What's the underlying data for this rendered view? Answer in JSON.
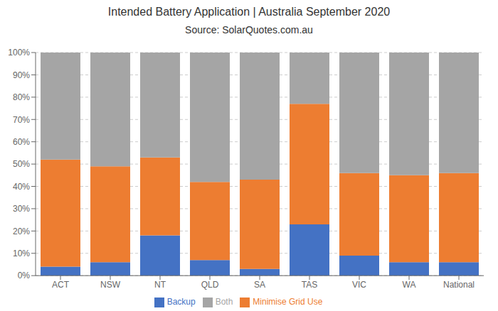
{
  "chart_data": {
    "type": "bar",
    "title": "Intended Battery Application | Australia September 2020",
    "subtitle": "Source: SolarQuotes.com.au",
    "categories": [
      "ACT",
      "NSW",
      "NT",
      "QLD",
      "SA",
      "TAS",
      "VIC",
      "WA",
      "National"
    ],
    "series": [
      {
        "name": "Backup",
        "color": "#4472c4",
        "values": [
          4,
          6,
          18,
          7,
          3,
          23,
          9,
          6,
          6
        ]
      },
      {
        "name": "Minimise Grid Use",
        "color": "#ed7d31",
        "values": [
          48,
          43,
          35,
          35,
          40,
          54,
          37,
          39,
          40
        ]
      },
      {
        "name": "Both",
        "color": "#a5a5a5",
        "values": [
          48,
          51,
          47,
          58,
          57,
          23,
          54,
          55,
          54
        ]
      }
    ],
    "ylim": [
      0,
      100
    ],
    "yticks": [
      {
        "value": 0,
        "label": "0%"
      },
      {
        "value": 10,
        "label": "10%"
      },
      {
        "value": 20,
        "label": "20%"
      },
      {
        "value": 30,
        "label": "30%"
      },
      {
        "value": 40,
        "label": "40%"
      },
      {
        "value": 50,
        "label": "50%"
      },
      {
        "value": 60,
        "label": "60%"
      },
      {
        "value": 70,
        "label": "70%"
      },
      {
        "value": 80,
        "label": "80%"
      },
      {
        "value": 90,
        "label": "90%"
      },
      {
        "value": 100,
        "label": "100%"
      }
    ],
    "stacked": true,
    "grid": true,
    "legend": "bottom"
  }
}
